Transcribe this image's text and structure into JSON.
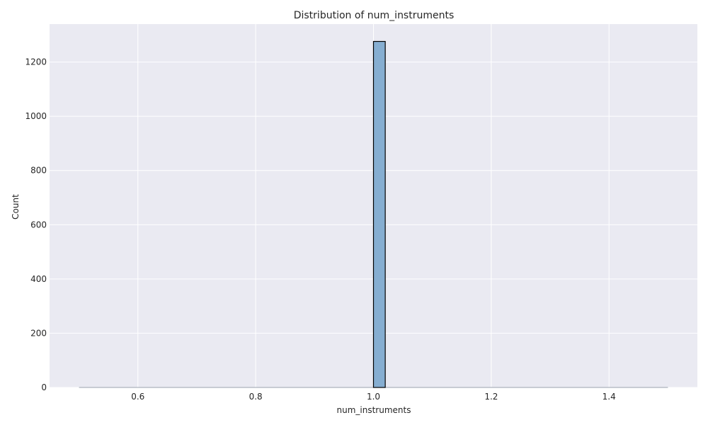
{
  "chart_data": {
    "type": "bar",
    "title": "Distribution of num_instruments",
    "xlabel": "num_instruments",
    "ylabel": "Count",
    "xlim": [
      0.45,
      1.55
    ],
    "ylim": [
      0,
      1340
    ],
    "xticks": [
      0.6,
      0.8,
      1.0,
      1.2,
      1.4
    ],
    "xtick_labels": [
      "0.6",
      "0.8",
      "1.0",
      "1.2",
      "1.4"
    ],
    "yticks": [
      0,
      200,
      400,
      600,
      800,
      1000,
      1200
    ],
    "ytick_labels": [
      "0",
      "200",
      "400",
      "600",
      "800",
      "1000",
      "1200"
    ],
    "grid": true,
    "bins": [
      {
        "x0": 1.0,
        "x1": 1.02,
        "count": 1276
      }
    ],
    "baseline_range": [
      0.5,
      1.5
    ],
    "colors": {
      "background": "#eaeaf2",
      "grid": "#ffffff",
      "bar_fill": "#86aed1",
      "bar_edge": "#000000"
    }
  }
}
